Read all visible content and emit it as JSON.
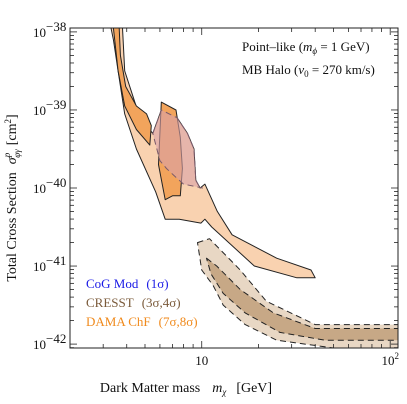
{
  "chart_data": {
    "type": "area",
    "x_axis": {
      "label_main": "Dark Matter mass",
      "label_symbol": "m",
      "label_subscript": "χ",
      "label_unit": "[GeV]",
      "scale": "log",
      "range": [
        2,
        110
      ],
      "major_ticks": [
        10,
        100
      ],
      "tick_labels": [
        "10",
        "10"
      ],
      "tick_label_exponents": [
        "",
        "2"
      ]
    },
    "y_axis": {
      "label_main": "Total Cross Section",
      "label_symbol": "σ",
      "label_sup": "p",
      "label_sub": "φγ",
      "label_unit": "[cm",
      "label_unit_sup": "2",
      "label_unit_close": "]",
      "scale": "log",
      "range_exponent": [
        -42.05,
        -37.95
      ],
      "major_ticks_exponent": [
        -42,
        -41,
        -40,
        -39,
        -38
      ],
      "tick_label_base": "10",
      "tick_label_exponents": [
        "−42",
        "−41",
        "−40",
        "−39",
        "−38"
      ]
    },
    "annotations": {
      "line1_prefix": "Point–like (",
      "line1_sym": "m",
      "line1_sub": "ϕ",
      "line1_suffix": " = 1 GeV)",
      "line2_prefix": "MB Halo (",
      "line2_sym": "v",
      "line2_sub": "0",
      "line2_suffix": " = 270 km/s)"
    },
    "legend": {
      "position": "bottom-left",
      "entries": [
        {
          "label": "CoG Mod",
          "sigma": "(1σ)",
          "color": "#1a1ae6"
        },
        {
          "label": "CRESST",
          "sigma": "(3σ,4σ)",
          "color": "#7a5a3a"
        },
        {
          "label": "DAMA ChF",
          "sigma": "(7σ,8σ)",
          "color": "#f08a1c"
        }
      ]
    },
    "series": [
      {
        "name": "DAMA ChF",
        "role": "outer",
        "fill": "#f9d2b0",
        "polygon": [
          [
            3.3,
            -37.95
          ],
          [
            3.8,
            -37.95
          ],
          [
            3.9,
            -38.5
          ],
          [
            4.7,
            -39.1
          ],
          [
            5.5,
            -39.3
          ],
          [
            6.1,
            -39.0
          ],
          [
            7.4,
            -39.1
          ],
          [
            8.4,
            -39.3
          ],
          [
            9.1,
            -39.5
          ],
          [
            9.3,
            -39.9
          ],
          [
            9.8,
            -40.0
          ],
          [
            10.4,
            -39.95
          ],
          [
            12.1,
            -40.3
          ],
          [
            14.5,
            -40.6
          ],
          [
            25,
            -40.9
          ],
          [
            38,
            -41.05
          ],
          [
            40,
            -41.15
          ],
          [
            32,
            -41.15
          ],
          [
            19,
            -41.0
          ],
          [
            11.3,
            -40.5
          ],
          [
            10.4,
            -40.4
          ],
          [
            9.9,
            -40.45
          ],
          [
            7.6,
            -40.4
          ],
          [
            6.4,
            -40.4
          ],
          [
            5.7,
            -40.05
          ],
          [
            4.5,
            -39.5
          ],
          [
            3.9,
            -39.05
          ],
          [
            3.6,
            -38.5
          ],
          [
            3.4,
            -38.1
          ]
        ]
      },
      {
        "name": "DAMA ChF",
        "role": "inner",
        "fill": "#f2a45c",
        "polygon": [
          [
            3.4,
            -37.95
          ],
          [
            3.65,
            -37.95
          ],
          [
            3.7,
            -38.3
          ],
          [
            3.95,
            -38.7
          ],
          [
            4.5,
            -38.95
          ],
          [
            5.1,
            -39.05
          ],
          [
            5.4,
            -39.2
          ],
          [
            5.3,
            -39.45
          ],
          [
            4.5,
            -39.25
          ],
          [
            3.9,
            -38.95
          ],
          [
            3.6,
            -38.5
          ]
        ]
      },
      {
        "name": "DAMA ChF",
        "role": "inner",
        "fill": "#f2a45c",
        "polygon": [
          [
            6.1,
            -38.9
          ],
          [
            7.3,
            -39.0
          ],
          [
            7.7,
            -39.35
          ],
          [
            7.9,
            -39.75
          ],
          [
            7.7,
            -40.1
          ],
          [
            7.0,
            -40.1
          ],
          [
            6.4,
            -40.15
          ],
          [
            5.9,
            -39.7
          ]
        ]
      },
      {
        "name": "CRESST",
        "role": "outer",
        "fill": "#e8d7c4",
        "polygon": [
          [
            9.5,
            -40.7
          ],
          [
            11,
            -40.65
          ],
          [
            16,
            -41.05
          ],
          [
            22,
            -41.45
          ],
          [
            40,
            -41.75
          ],
          [
            110,
            -41.75
          ],
          [
            110,
            -42.05
          ],
          [
            50,
            -42.05
          ],
          [
            25,
            -41.95
          ],
          [
            17,
            -41.75
          ],
          [
            13,
            -41.5
          ],
          [
            11.5,
            -41.25
          ],
          [
            10,
            -41.05
          ]
        ]
      },
      {
        "name": "CRESST",
        "role": "inner",
        "fill": "#c7a886",
        "polygon": [
          [
            10.6,
            -40.9
          ],
          [
            12,
            -41.0
          ],
          [
            16,
            -41.3
          ],
          [
            24,
            -41.6
          ],
          [
            40,
            -41.8
          ],
          [
            110,
            -41.8
          ],
          [
            110,
            -41.95
          ],
          [
            45,
            -41.95
          ],
          [
            26,
            -41.85
          ],
          [
            17,
            -41.6
          ],
          [
            13,
            -41.35
          ],
          [
            11.2,
            -41.1
          ]
        ]
      },
      {
        "name": "CoG Mod",
        "role": "band",
        "fill": "#d8a2a8",
        "opacity": 0.6,
        "polygon": [
          [
            5.5,
            -39.3
          ],
          [
            6.1,
            -39.0
          ],
          [
            7.4,
            -39.1
          ],
          [
            8.4,
            -39.3
          ],
          [
            9.1,
            -39.5
          ],
          [
            9.3,
            -39.9
          ],
          [
            9.8,
            -40.0
          ],
          [
            10.1,
            -40.0
          ],
          [
            8.0,
            -39.95
          ],
          [
            7.2,
            -39.85
          ],
          [
            6.5,
            -39.75
          ],
          [
            6.0,
            -39.65
          ]
        ]
      }
    ]
  }
}
